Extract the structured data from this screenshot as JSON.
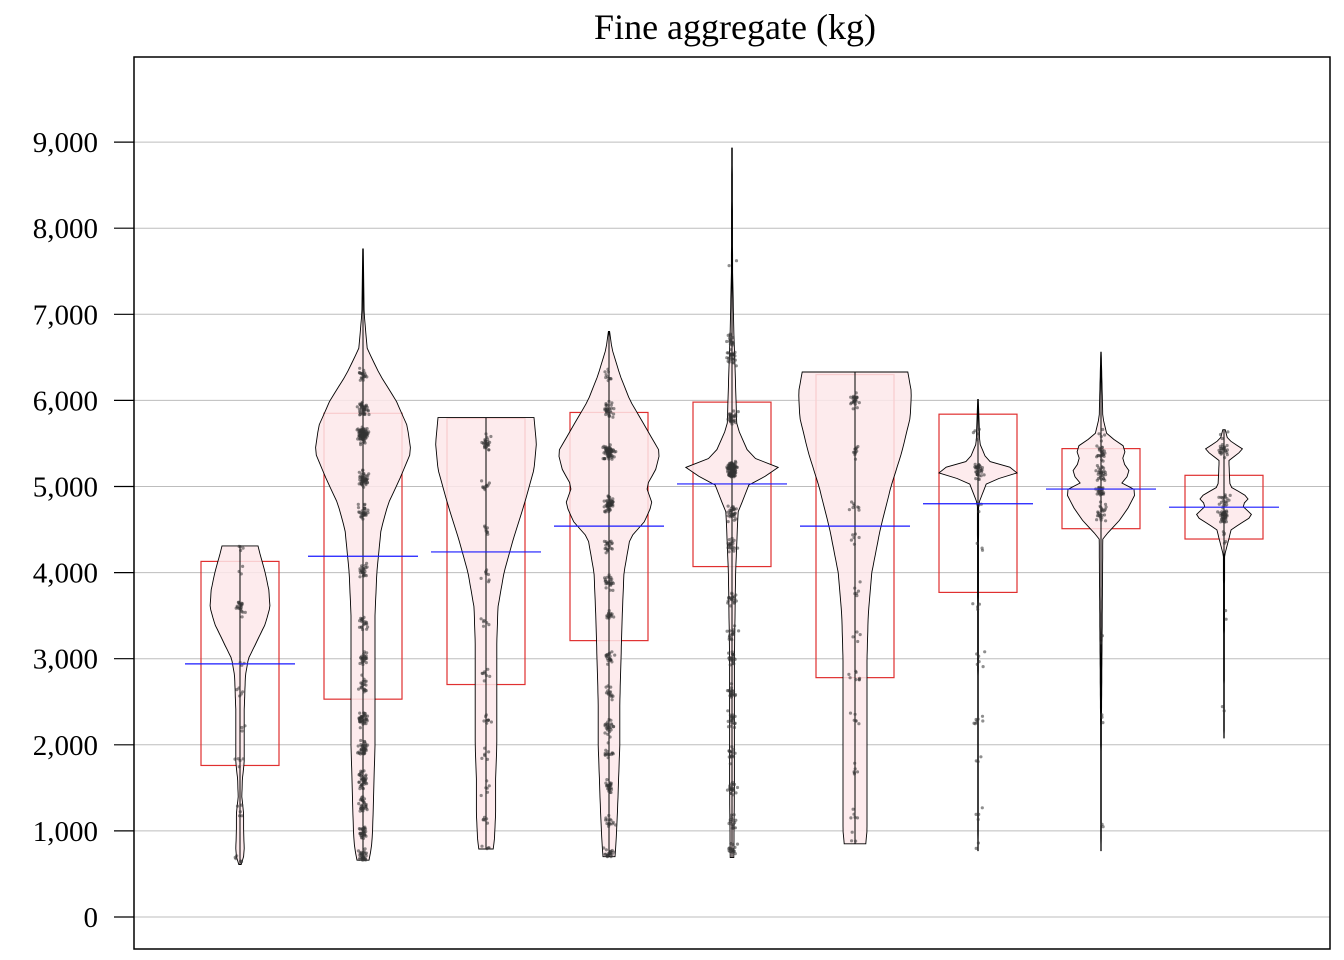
{
  "chart_data": {
    "type": "violin",
    "title": "Fine aggregate (kg)",
    "xlabel": "",
    "ylabel": "",
    "ylim": [
      -370,
      9980
    ],
    "yticks": [
      0,
      1000,
      2000,
      3000,
      4000,
      5000,
      6000,
      7000,
      8000,
      9000
    ],
    "ytick_labels": [
      "0",
      "1,000",
      "2,000",
      "3,000",
      "4,000",
      "5,000",
      "6,000",
      "7,000",
      "8,000",
      "9,000"
    ],
    "grid": true,
    "legend": "none",
    "colors": {
      "violin_fill": "#fde8ea",
      "violin_stroke": "#000000",
      "box_stroke": "#e03030",
      "mean_line": "#1a1aff",
      "points": "#333333",
      "grid": "#bdbdbd"
    },
    "groups": [
      {
        "min": 610,
        "max": 4310,
        "q1": 1760,
        "q3": 4130,
        "mean": 2940,
        "clusters": [
          [
            3600,
            22
          ],
          [
            4300,
            4
          ],
          [
            4000,
            3
          ],
          [
            2600,
            5
          ],
          [
            1800,
            5
          ],
          [
            1200,
            5
          ],
          [
            700,
            5
          ],
          [
            3000,
            3
          ],
          [
            2200,
            3
          ]
        ],
        "violin": [
          [
            610,
            0.02
          ],
          [
            700,
            0.06
          ],
          [
            800,
            0.07
          ],
          [
            1000,
            0.06
          ],
          [
            1200,
            0.06
          ],
          [
            1400,
            0.03
          ],
          [
            1600,
            0.04
          ],
          [
            1800,
            0.07
          ],
          [
            2000,
            0.07
          ],
          [
            2400,
            0.07
          ],
          [
            2800,
            0.09
          ],
          [
            3000,
            0.14
          ],
          [
            3200,
            0.28
          ],
          [
            3400,
            0.42
          ],
          [
            3600,
            0.5
          ],
          [
            3800,
            0.48
          ],
          [
            4000,
            0.42
          ],
          [
            4200,
            0.34
          ],
          [
            4310,
            0.3
          ]
        ]
      },
      {
        "min": 660,
        "max": 7760,
        "q1": 2530,
        "q3": 5850,
        "mean": 4190,
        "clusters": [
          [
            5600,
            90
          ],
          [
            5100,
            50
          ],
          [
            5900,
            40
          ],
          [
            6300,
            20
          ],
          [
            4700,
            30
          ],
          [
            4000,
            25
          ],
          [
            3400,
            20
          ],
          [
            3000,
            25
          ],
          [
            2700,
            20
          ],
          [
            2300,
            40
          ],
          [
            1950,
            40
          ],
          [
            1600,
            40
          ],
          [
            1300,
            30
          ],
          [
            1000,
            30
          ],
          [
            700,
            30
          ]
        ],
        "violin": [
          [
            660,
            0.1
          ],
          [
            800,
            0.14
          ],
          [
            1000,
            0.16
          ],
          [
            1500,
            0.18
          ],
          [
            2000,
            0.2
          ],
          [
            2500,
            0.2
          ],
          [
            3000,
            0.2
          ],
          [
            3500,
            0.2
          ],
          [
            4000,
            0.23
          ],
          [
            4500,
            0.3
          ],
          [
            4800,
            0.42
          ],
          [
            5100,
            0.62
          ],
          [
            5400,
            0.8
          ],
          [
            5700,
            0.74
          ],
          [
            6000,
            0.55
          ],
          [
            6300,
            0.28
          ],
          [
            6600,
            0.07
          ],
          [
            7000,
            0.02
          ],
          [
            7760,
            0.005
          ]
        ]
      },
      {
        "min": 790,
        "max": 5800,
        "q1": 2700,
        "q3": 5790,
        "mean": 4240,
        "clusters": [
          [
            5500,
            25
          ],
          [
            5000,
            10
          ],
          [
            4500,
            8
          ],
          [
            4000,
            8
          ],
          [
            3400,
            6
          ],
          [
            2800,
            8
          ],
          [
            2300,
            8
          ],
          [
            1900,
            6
          ],
          [
            1500,
            6
          ],
          [
            1100,
            6
          ],
          [
            800,
            4
          ]
        ],
        "violin": [
          [
            790,
            0.12
          ],
          [
            900,
            0.14
          ],
          [
            1200,
            0.16
          ],
          [
            1600,
            0.16
          ],
          [
            2000,
            0.18
          ],
          [
            2400,
            0.18
          ],
          [
            2800,
            0.18
          ],
          [
            3200,
            0.18
          ],
          [
            3600,
            0.2
          ],
          [
            4000,
            0.3
          ],
          [
            4400,
            0.46
          ],
          [
            4800,
            0.64
          ],
          [
            5200,
            0.8
          ],
          [
            5500,
            0.84
          ],
          [
            5800,
            0.8
          ]
        ]
      },
      {
        "min": 700,
        "max": 6800,
        "q1": 3210,
        "q3": 5860,
        "mean": 4540,
        "clusters": [
          [
            5400,
            80
          ],
          [
            4800,
            60
          ],
          [
            5900,
            30
          ],
          [
            6300,
            10
          ],
          [
            4300,
            20
          ],
          [
            3900,
            25
          ],
          [
            3500,
            15
          ],
          [
            3000,
            20
          ],
          [
            2600,
            15
          ],
          [
            2200,
            25
          ],
          [
            1900,
            15
          ],
          [
            1500,
            25
          ],
          [
            1100,
            15
          ],
          [
            750,
            20
          ]
        ],
        "violin": [
          [
            700,
            0.1
          ],
          [
            900,
            0.12
          ],
          [
            1200,
            0.14
          ],
          [
            1600,
            0.16
          ],
          [
            2000,
            0.18
          ],
          [
            2500,
            0.18
          ],
          [
            3000,
            0.2
          ],
          [
            3500,
            0.22
          ],
          [
            4000,
            0.25
          ],
          [
            4400,
            0.35
          ],
          [
            4600,
            0.6
          ],
          [
            4800,
            0.72
          ],
          [
            5000,
            0.62
          ],
          [
            5200,
            0.78
          ],
          [
            5400,
            0.85
          ],
          [
            5700,
            0.6
          ],
          [
            6000,
            0.35
          ],
          [
            6300,
            0.18
          ],
          [
            6600,
            0.05
          ],
          [
            6800,
            0.01
          ]
        ]
      },
      {
        "min": 690,
        "max": 8930,
        "q1": 4070,
        "q3": 5980,
        "mean": 5030,
        "clusters": [
          [
            5200,
            130
          ],
          [
            5800,
            30
          ],
          [
            6500,
            30
          ],
          [
            6700,
            15
          ],
          [
            4700,
            30
          ],
          [
            4300,
            20
          ],
          [
            3700,
            20
          ],
          [
            3300,
            15
          ],
          [
            3000,
            20
          ],
          [
            2600,
            20
          ],
          [
            2300,
            20
          ],
          [
            1900,
            15
          ],
          [
            1500,
            20
          ],
          [
            1100,
            15
          ],
          [
            800,
            15
          ],
          [
            7600,
            2
          ]
        ],
        "violin": [
          [
            690,
            0.03
          ],
          [
            1500,
            0.04
          ],
          [
            3000,
            0.04
          ],
          [
            4000,
            0.06
          ],
          [
            4700,
            0.1
          ],
          [
            5050,
            0.3
          ],
          [
            5200,
            0.85
          ],
          [
            5350,
            0.3
          ],
          [
            5700,
            0.08
          ],
          [
            6400,
            0.05
          ],
          [
            6800,
            0.03
          ],
          [
            7500,
            0.01
          ],
          [
            8930,
            0.005
          ]
        ]
      },
      {
        "min": 850,
        "max": 6330,
        "q1": 2780,
        "q3": 6300,
        "mean": 4540,
        "clusters": [
          [
            6000,
            25
          ],
          [
            5400,
            12
          ],
          [
            4800,
            8
          ],
          [
            4400,
            6
          ],
          [
            3800,
            6
          ],
          [
            3300,
            4
          ],
          [
            2800,
            8
          ],
          [
            2300,
            6
          ],
          [
            1700,
            6
          ],
          [
            1200,
            5
          ],
          [
            900,
            3
          ]
        ],
        "violin": [
          [
            850,
            0.18
          ],
          [
            1000,
            0.2
          ],
          [
            1400,
            0.2
          ],
          [
            2000,
            0.2
          ],
          [
            2500,
            0.2
          ],
          [
            3000,
            0.2
          ],
          [
            3500,
            0.22
          ],
          [
            4000,
            0.28
          ],
          [
            4500,
            0.42
          ],
          [
            5000,
            0.6
          ],
          [
            5400,
            0.78
          ],
          [
            5800,
            0.92
          ],
          [
            6100,
            0.94
          ],
          [
            6330,
            0.88
          ]
        ]
      },
      {
        "min": 770,
        "max": 6010,
        "q1": 3770,
        "q3": 5840,
        "mean": 4800,
        "clusters": [
          [
            5180,
            40
          ],
          [
            5600,
            5
          ],
          [
            4800,
            4
          ],
          [
            4300,
            3
          ],
          [
            3600,
            4
          ],
          [
            3000,
            6
          ],
          [
            2300,
            8
          ],
          [
            1800,
            3
          ],
          [
            1200,
            4
          ],
          [
            800,
            2
          ]
        ],
        "violin": [
          [
            770,
            0.004
          ],
          [
            3000,
            0.006
          ],
          [
            4800,
            0.01
          ],
          [
            5050,
            0.15
          ],
          [
            5180,
            0.75
          ],
          [
            5300,
            0.15
          ],
          [
            5500,
            0.03
          ],
          [
            6010,
            0.005
          ]
        ]
      },
      {
        "min": 770,
        "max": 6560,
        "q1": 4510,
        "q3": 5440,
        "mean": 4970,
        "clusters": [
          [
            5400,
            25
          ],
          [
            5150,
            30
          ],
          [
            4950,
            25
          ],
          [
            4700,
            25
          ],
          [
            5600,
            5
          ],
          [
            3200,
            2
          ],
          [
            2300,
            3
          ],
          [
            1100,
            2
          ]
        ],
        "violin": [
          [
            770,
            0.004
          ],
          [
            2100,
            0.006
          ],
          [
            4400,
            0.03
          ],
          [
            4600,
            0.3
          ],
          [
            4750,
            0.45
          ],
          [
            4950,
            0.6
          ],
          [
            5050,
            0.32
          ],
          [
            5150,
            0.5
          ],
          [
            5300,
            0.35
          ],
          [
            5450,
            0.42
          ],
          [
            5600,
            0.1
          ],
          [
            5800,
            0.03
          ],
          [
            6560,
            0.004
          ]
        ]
      },
      {
        "min": 2080,
        "max": 5660,
        "q1": 4390,
        "q3": 5130,
        "mean": 4760,
        "clusters": [
          [
            5430,
            25
          ],
          [
            4850,
            20
          ],
          [
            4660,
            40
          ],
          [
            4400,
            5
          ],
          [
            3500,
            2
          ],
          [
            2400,
            2
          ],
          [
            5600,
            3
          ]
        ],
        "violin": [
          [
            2080,
            0.004
          ],
          [
            4200,
            0.01
          ],
          [
            4500,
            0.12
          ],
          [
            4660,
            0.48
          ],
          [
            4780,
            0.3
          ],
          [
            4870,
            0.42
          ],
          [
            5000,
            0.1
          ],
          [
            5300,
            0.08
          ],
          [
            5430,
            0.32
          ],
          [
            5550,
            0.06
          ],
          [
            5660,
            0.02
          ]
        ]
      }
    ]
  }
}
